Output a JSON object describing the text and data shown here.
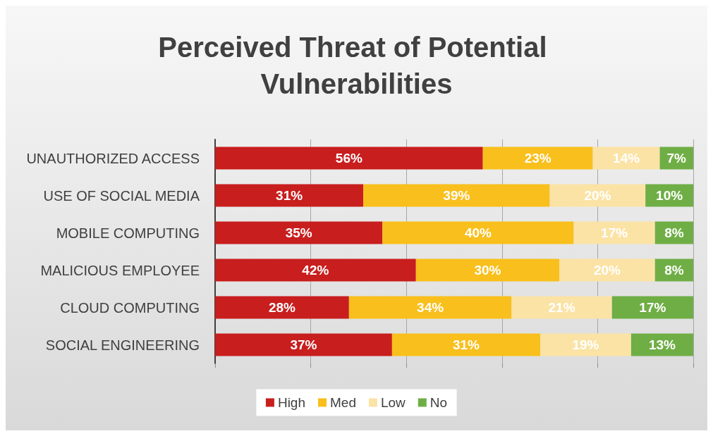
{
  "chart_data": {
    "type": "bar",
    "orientation": "horizontal",
    "stacked": true,
    "title": "Perceived Threat of Potential Vulnerabilities",
    "categories": [
      "UNAUTHORIZED ACCESS",
      "USE OF SOCIAL MEDIA",
      "MOBILE COMPUTING",
      "MALICIOUS EMPLOYEE",
      "CLOUD COMPUTING",
      "SOCIAL ENGINEERING"
    ],
    "series": [
      {
        "name": "High",
        "color": "#c81e1e",
        "values": [
          56,
          31,
          35,
          42,
          28,
          37
        ],
        "value_labels": [
          "56%",
          "31%",
          "35%",
          "42%",
          "28%",
          "37%"
        ]
      },
      {
        "name": "Med",
        "color": "#f9bf1c",
        "values": [
          23,
          39,
          40,
          30,
          34,
          31
        ],
        "value_labels": [
          "23%",
          "39%",
          "40%",
          "30%",
          "34%",
          "31%"
        ]
      },
      {
        "name": "Low",
        "color": "#fbe3a6",
        "values": [
          14,
          20,
          17,
          20,
          21,
          19
        ],
        "value_labels": [
          "14%",
          "20%",
          "17%",
          "20%",
          "21%",
          "19%"
        ]
      },
      {
        "name": "No",
        "color": "#6fae45",
        "values": [
          7,
          10,
          8,
          8,
          17,
          13
        ],
        "value_labels": [
          "7%",
          "10%",
          "8%",
          "8%",
          "17%",
          "13%"
        ]
      }
    ],
    "xlim": [
      0,
      100
    ],
    "xticks": [
      {
        "value": 0,
        "label": null
      },
      {
        "value": 20,
        "label": null
      },
      {
        "value": 40,
        "label": null
      },
      {
        "value": 60,
        "label": null
      },
      {
        "value": 80,
        "label": null
      },
      {
        "value": 100,
        "label": null
      }
    ],
    "grid": "x",
    "legend": "bottom",
    "tick_labels": "y"
  }
}
